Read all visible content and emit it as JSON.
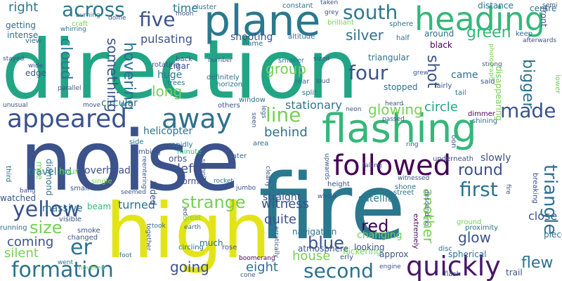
{
  "words": [
    {
      "text": "direction",
      "color": "#21a585",
      "v": false
    },
    {
      "text": "noise",
      "color": "#3b528b",
      "v": false
    },
    {
      "text": "fire",
      "color": "#2a788e",
      "v": false
    },
    {
      "text": "high",
      "color": "#e3e418",
      "v": false
    },
    {
      "text": "plane",
      "color": "#2a788e",
      "v": false
    },
    {
      "text": "flashing",
      "color": "#35b779",
      "v": false
    },
    {
      "text": "heading",
      "color": "#35b779",
      "v": false
    },
    {
      "text": "appeared",
      "color": "#3b528b",
      "v": false
    },
    {
      "text": "away",
      "color": "#2c718e",
      "v": false
    },
    {
      "text": "followed",
      "color": "#440154",
      "v": false
    },
    {
      "text": "quickly",
      "color": "#481769",
      "v": false
    },
    {
      "text": "second",
      "color": "#2c718e",
      "v": false
    },
    {
      "text": "formation",
      "color": "#2c718e",
      "v": false
    },
    {
      "text": "across",
      "color": "#2a788e",
      "v": false
    },
    {
      "text": "south",
      "color": "#2a788e",
      "v": false
    },
    {
      "text": "five",
      "color": "#3b528b",
      "v": false
    },
    {
      "text": "four",
      "color": "#3b528b",
      "v": false
    },
    {
      "text": "made",
      "color": "#3b528b",
      "v": false
    },
    {
      "text": "first",
      "color": "#2c718e",
      "v": false
    },
    {
      "text": "yellow",
      "color": "#3b528b",
      "v": false
    },
    {
      "text": "size",
      "color": "#75d054",
      "v": false
    },
    {
      "text": "er",
      "color": "#2c718e",
      "v": false
    },
    {
      "text": "line",
      "color": "#75d054",
      "v": false
    },
    {
      "text": "strange",
      "color": "#75d054",
      "v": false
    },
    {
      "text": "blue",
      "color": "#3b528b",
      "v": false
    },
    {
      "text": "red",
      "color": "#440154",
      "v": false
    },
    {
      "text": "round",
      "color": "#3b528b",
      "v": false
    },
    {
      "text": "flew",
      "color": "#2c718e",
      "v": false
    },
    {
      "text": "group",
      "color": "#75d054",
      "v": false
    },
    {
      "text": "glowing",
      "color": "#75d054",
      "v": false
    },
    {
      "text": "silver",
      "color": "#2c718e",
      "v": false
    },
    {
      "text": "green",
      "color": "#35b779",
      "v": false
    },
    {
      "text": "long",
      "color": "#75d054",
      "v": false
    },
    {
      "text": "coming",
      "color": "#3b528b",
      "v": false
    },
    {
      "text": "going",
      "color": "#3b528b",
      "v": false
    },
    {
      "text": "eight",
      "color": "#2c718e",
      "v": false
    },
    {
      "text": "house",
      "color": "#75d054",
      "v": false
    },
    {
      "text": "witness",
      "color": "#3b528b",
      "v": false
    },
    {
      "text": "quite",
      "color": "#3b528b",
      "v": false
    },
    {
      "text": "circle",
      "color": "#21a585",
      "v": false
    },
    {
      "text": "glow",
      "color": "#3b528b",
      "v": false
    },
    {
      "text": "behind",
      "color": "#2c718e",
      "v": false
    },
    {
      "text": "left",
      "color": "#3b528b",
      "v": false
    },
    {
      "text": "turned",
      "color": "#2c718e",
      "v": false
    },
    {
      "text": "silent",
      "color": "#75d054",
      "v": false
    },
    {
      "text": "right",
      "color": "#2a788e",
      "v": false
    },
    {
      "text": "time",
      "color": "#2a788e",
      "v": false
    },
    {
      "text": "travelled",
      "color": "#2a788e",
      "v": false
    },
    {
      "text": "overhead",
      "color": "#3b528b",
      "v": false
    },
    {
      "text": "helicopter",
      "color": "#2c718e",
      "v": false
    },
    {
      "text": "huge",
      "color": "#2a788e",
      "v": false
    },
    {
      "text": "pulsating",
      "color": "#3b528b",
      "v": false
    },
    {
      "text": "shooting",
      "color": "#3b528b",
      "v": false
    },
    {
      "text": "stationary",
      "color": "#2a788e",
      "v": false
    },
    {
      "text": "satellite",
      "color": "#2a788e",
      "v": false
    },
    {
      "text": "straight",
      "color": "#3b528b",
      "v": false
    },
    {
      "text": "triangular",
      "color": "#2c718e",
      "v": false
    },
    {
      "text": "circular",
      "color": "#2c718e",
      "v": false
    },
    {
      "text": "slowly",
      "color": "#3b528b",
      "v": false
    },
    {
      "text": "came",
      "color": "#2c718e",
      "v": false
    },
    {
      "text": "close",
      "color": "#3b528b",
      "v": false
    },
    {
      "text": "massive",
      "color": "#2c718e",
      "v": false
    },
    {
      "text": "watched",
      "color": "#3b528b",
      "v": false
    },
    {
      "text": "much",
      "color": "#2c718e",
      "v": false
    },
    {
      "text": "orbs",
      "color": "#3b528b",
      "v": false
    },
    {
      "text": "beam",
      "color": "#35b779",
      "v": false
    },
    {
      "text": "changing",
      "color": "#75d054",
      "v": false
    },
    {
      "text": "flickering",
      "color": "#75d054",
      "v": false
    },
    {
      "text": "navigation",
      "color": "#2c718e",
      "v": false
    },
    {
      "text": "looking",
      "color": "#3b528b",
      "v": false
    },
    {
      "text": "spherical",
      "color": "#2c718e",
      "v": false
    },
    {
      "text": "atmosphere",
      "color": "#3b528b",
      "v": false
    },
    {
      "text": "approx",
      "color": "#3b528b",
      "v": false
    },
    {
      "text": "trail",
      "color": "#3b528b",
      "v": false
    },
    {
      "text": "piece",
      "color": "#2c718e",
      "v": false
    },
    {
      "text": "stopped",
      "color": "#2c718e",
      "v": false
    },
    {
      "text": "distance",
      "color": "#2c718e",
      "v": false
    },
    {
      "text": "centre",
      "color": "#2c718e",
      "v": false
    },
    {
      "text": "around",
      "color": "#2c718e",
      "v": false
    },
    {
      "text": "black",
      "color": "#440154",
      "v": false
    },
    {
      "text": "getting",
      "color": "#2c718e",
      "v": false
    },
    {
      "text": "intense",
      "color": "#2c718e",
      "v": false
    },
    {
      "text": "view",
      "color": "#2c718e",
      "v": false
    },
    {
      "text": "edge",
      "color": "#3b528b",
      "v": false
    },
    {
      "text": "cigar",
      "color": "#3b528b",
      "v": false
    },
    {
      "text": "trees",
      "color": "#2c718e",
      "v": false
    },
    {
      "text": "horizon",
      "color": "#2c718e",
      "v": false
    },
    {
      "text": "others",
      "color": "#3b528b",
      "v": false
    },
    {
      "text": "window",
      "color": "#2c718e",
      "v": false
    },
    {
      "text": "flame",
      "color": "#2c718e",
      "v": false
    },
    {
      "text": "altitude",
      "color": "#2c718e",
      "v": false
    },
    {
      "text": "definitely",
      "color": "#2c718e",
      "v": false
    },
    {
      "text": "smaller",
      "color": "#2c718e",
      "v": false
    },
    {
      "text": "rear",
      "color": "#2c718e",
      "v": false
    },
    {
      "text": "split",
      "color": "#2c718e",
      "v": false
    },
    {
      "text": "cluster",
      "color": "#2c718e",
      "v": false
    },
    {
      "text": "constant",
      "color": "#2c718e",
      "v": false
    },
    {
      "text": "brilliant",
      "color": "#75d054",
      "v": false
    },
    {
      "text": "sphere",
      "color": "#2c718e",
      "v": false
    },
    {
      "text": "half",
      "color": "#2c718e",
      "v": false
    },
    {
      "text": "keep",
      "color": "#2c718e",
      "v": false
    },
    {
      "text": "tail",
      "color": "#2c718e",
      "v": false
    },
    {
      "text": "said",
      "color": "#3b528b",
      "v": false
    },
    {
      "text": "fairly",
      "color": "#3b528b",
      "v": false
    },
    {
      "text": "dimmer",
      "color": "#440154",
      "v": false
    },
    {
      "text": "shining",
      "color": "#2c718e",
      "v": false
    },
    {
      "text": "hour",
      "color": "#75d054",
      "v": false
    },
    {
      "text": "side",
      "color": "#2c718e",
      "v": false
    },
    {
      "text": "climbing",
      "color": "#3b528b",
      "v": false
    },
    {
      "text": "rapidly",
      "color": "#2c718e",
      "v": false
    },
    {
      "text": "minute",
      "color": "#35b779",
      "v": false
    },
    {
      "text": "normal",
      "color": "#3b528b",
      "v": false
    },
    {
      "text": "later",
      "color": "#2c718e",
      "v": false
    },
    {
      "text": "area",
      "color": "#2c718e",
      "v": false
    },
    {
      "text": "height",
      "color": "#3b528b",
      "v": false
    },
    {
      "text": "shone",
      "color": "#2c718e",
      "v": false
    },
    {
      "text": "street",
      "color": "#2c718e",
      "v": false
    },
    {
      "text": "witnessed",
      "color": "#3b528b",
      "v": false
    },
    {
      "text": "underneath",
      "color": "#3b528b",
      "v": false
    },
    {
      "text": "single",
      "color": "#75d054",
      "v": false
    },
    {
      "text": "small",
      "color": "#3b528b",
      "v": false
    },
    {
      "text": "smoke",
      "color": "#3b528b",
      "v": false
    },
    {
      "text": "changed",
      "color": "#3b528b",
      "v": false
    },
    {
      "text": "visible",
      "color": "#3b528b",
      "v": false
    },
    {
      "text": "took",
      "color": "#2c718e",
      "v": false
    },
    {
      "text": "earth",
      "color": "#2c718e",
      "v": false
    },
    {
      "text": "circling",
      "color": "#2c718e",
      "v": false
    },
    {
      "text": "rose",
      "color": "#3b528b",
      "v": false
    },
    {
      "text": "went",
      "color": "#2c718e",
      "v": false
    },
    {
      "text": "foot",
      "color": "#2c718e",
      "v": false
    },
    {
      "text": "engine",
      "color": "#3b528b",
      "v": false
    },
    {
      "text": "flash",
      "color": "#3b528b",
      "v": false
    },
    {
      "text": "cone",
      "color": "#3b528b",
      "v": false
    },
    {
      "text": "ground",
      "color": "#75d054",
      "v": false
    },
    {
      "text": "proximity",
      "color": "#2c718e",
      "v": false
    },
    {
      "text": "disc",
      "color": "#2c718e",
      "v": false
    },
    {
      "text": "running",
      "color": "#2c718e",
      "v": false
    },
    {
      "text": "great",
      "color": "#75d054",
      "v": false
    },
    {
      "text": "jumbo",
      "color": "#3b528b",
      "v": false
    },
    {
      "text": "rocket",
      "color": "#2c718e",
      "v": false
    },
    {
      "text": "whole",
      "color": "#3b528b",
      "v": false
    },
    {
      "text": "erly",
      "color": "#3b528b",
      "v": false
    },
    {
      "text": "burning",
      "color": "#2c718e",
      "v": false
    },
    {
      "text": "whirring",
      "color": "#2c718e",
      "v": false
    },
    {
      "text": "craft",
      "color": "#75d054",
      "v": false
    },
    {
      "text": "dome",
      "color": "#3b528b",
      "v": false
    },
    {
      "text": "moon",
      "color": "#3b528b",
      "v": false
    },
    {
      "text": "taken",
      "color": "#3b528b",
      "v": false
    },
    {
      "text": "grey",
      "color": "#3b528b",
      "v": false
    },
    {
      "text": "semi",
      "color": "#3b528b",
      "v": false
    },
    {
      "text": "afterwards",
      "color": "#3b528b",
      "v": false
    },
    {
      "text": "stayed",
      "color": "#3b528b",
      "v": false
    },
    {
      "text": "unusual",
      "color": "#3b528b",
      "v": false
    },
    {
      "text": "move",
      "color": "#3b528b",
      "v": false
    },
    {
      "text": "parallel",
      "color": "#3b528b",
      "v": false
    },
    {
      "text": "wide",
      "color": "#3b528b",
      "v": false
    },
    {
      "text": "number",
      "color": "#3b528b",
      "v": false
    },
    {
      "text": "back",
      "color": "#3b528b",
      "v": false
    },
    {
      "text": "rotating",
      "color": "#3b528b",
      "v": false
    },
    {
      "text": "sized",
      "color": "#3b528b",
      "v": false
    },
    {
      "text": "loud",
      "color": "#3b528b",
      "v": false
    },
    {
      "text": "grew",
      "color": "#3b528b",
      "v": false
    },
    {
      "text": "strong",
      "color": "#3b528b",
      "v": false
    },
    {
      "text": "passed",
      "color": "#3b528b",
      "v": false
    },
    {
      "text": "heard",
      "color": "#3b528b",
      "v": false
    },
    {
      "text": "neon",
      "color": "#3b528b",
      "v": false
    },
    {
      "text": "falling",
      "color": "#3b528b",
      "v": false
    },
    {
      "text": "bang",
      "color": "#3b528b",
      "v": false
    },
    {
      "text": "seemed",
      "color": "#3b528b",
      "v": false
    },
    {
      "text": "hovered",
      "color": "#75d054",
      "v": false
    },
    {
      "text": "ring",
      "color": "#3b528b",
      "v": false
    },
    {
      "text": "boomerang",
      "color": "#440154",
      "v": false
    },
    {
      "text": "third",
      "color": "#2c718e",
      "v": true
    },
    {
      "text": "mile",
      "color": "#75d054",
      "v": true
    },
    {
      "text": "diamond",
      "color": "#2c718e",
      "v": true
    },
    {
      "text": "shot",
      "color": "#3b528b",
      "v": true
    },
    {
      "text": "bigger",
      "color": "#2c718e",
      "v": true
    },
    {
      "text": "triangle",
      "color": "#2c718e",
      "v": true
    },
    {
      "text": "something",
      "color": "#3b528b",
      "v": true
    },
    {
      "text": "hovering",
      "color": "#2c718e",
      "v": true
    },
    {
      "text": "cloud",
      "color": "#2a788e",
      "v": true
    },
    {
      "text": "another",
      "color": "#75d054",
      "v": true
    },
    {
      "text": "front",
      "color": "#3b528b",
      "v": true
    },
    {
      "text": "photograph",
      "color": "#75d054",
      "v": true
    },
    {
      "text": "disappearing",
      "color": "#75d054",
      "v": true
    },
    {
      "text": "lower",
      "color": "#75d054",
      "v": true
    },
    {
      "text": "breaking",
      "color": "#3b528b",
      "v": true
    },
    {
      "text": "extremely",
      "color": "#440154",
      "v": true
    },
    {
      "text": "faded",
      "color": "#3b528b",
      "v": true
    },
    {
      "text": "spinning",
      "color": "#3b528b",
      "v": true
    },
    {
      "text": "together",
      "color": "#3b528b",
      "v": true
    },
    {
      "text": "upwards",
      "color": "#3b528b",
      "v": true
    },
    {
      "text": "reentering",
      "color": "#3b528b",
      "v": true
    },
    {
      "text": "erratically",
      "color": "#3b528b",
      "v": true
    },
    {
      "text": "clearly",
      "color": "#3b528b",
      "v": true
    },
    {
      "text": "ed",
      "color": "#3b528b",
      "v": true
    },
    {
      "text": "seen",
      "color": "#3b528b",
      "v": true
    },
    {
      "text": "legs",
      "color": "#3b528b",
      "v": true
    },
    {
      "text": "oon",
      "color": "#3b528b",
      "v": true
    },
    {
      "text": "fire",
      "color": "#3b528b",
      "v": true
    },
    {
      "text": "descending",
      "color": "#3b528b",
      "v": true
    }
  ]
}
